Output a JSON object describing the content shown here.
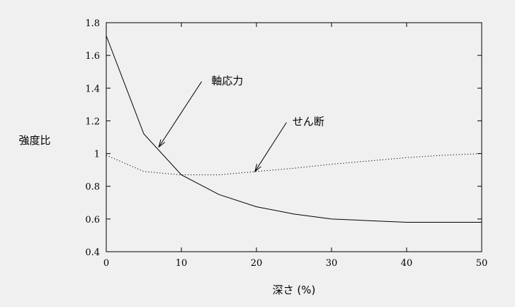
{
  "chart_data": {
    "type": "line",
    "title": "",
    "xlabel": "深さ (%)",
    "ylabel": "強度比",
    "xlim": [
      0,
      50
    ],
    "ylim": [
      0.4,
      1.8
    ],
    "xticks": [
      "0",
      "10",
      "20",
      "30",
      "40",
      "50"
    ],
    "yticks": [
      "0.4",
      "0.6",
      "0.8",
      "1",
      "1.2",
      "1.4",
      "1.6",
      "1.8"
    ],
    "grid": false,
    "legend": "none",
    "series": [
      {
        "style": "solid",
        "color": "#000000",
        "x": [
          0,
          5,
          10,
          15,
          20,
          25,
          30,
          35,
          40,
          45,
          50
        ],
        "y": [
          1.72,
          1.12,
          0.87,
          0.75,
          0.675,
          0.63,
          0.6,
          0.59,
          0.58,
          0.58,
          0.58
        ]
      },
      {
        "style": "dotted",
        "color": "#000000",
        "x": [
          0,
          5,
          10,
          15,
          20,
          25,
          30,
          35,
          40,
          45,
          50
        ],
        "y": [
          0.99,
          0.89,
          0.87,
          0.87,
          0.89,
          0.91,
          0.935,
          0.955,
          0.975,
          0.99,
          1.0
        ]
      }
    ],
    "annotations": [
      {
        "text": "軸応力",
        "arrow_from": [
          12.7,
          1.44
        ],
        "arrow_to": [
          7,
          1.04
        ],
        "text_at": [
          14,
          1.45
        ]
      },
      {
        "text": "せん断",
        "arrow_from": [
          24,
          1.19
        ],
        "arrow_to": [
          19.8,
          0.89
        ],
        "text_at": [
          24.8,
          1.2
        ]
      }
    ]
  }
}
